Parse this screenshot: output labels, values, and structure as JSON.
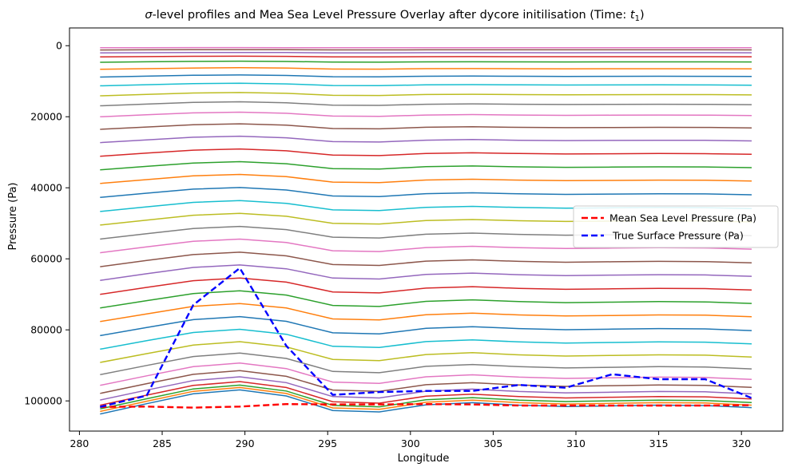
{
  "chart_data": {
    "type": "line",
    "title": "σ-level profiles and Mea Sea Level Pressure Overlay after dycore initilisation (Time: t₁)",
    "title_parts": {
      "sigma": "σ",
      "main": "-level profiles and Mea Sea Level Pressure Overlay after dycore initilisation (Time: ",
      "t": "t",
      "sub": "1",
      "close": ")"
    },
    "xlabel": "Longitude",
    "ylabel": "Pressure (Pa)",
    "xlim": [
      279.4,
      322.5
    ],
    "ylim": [
      108500,
      -5000
    ],
    "y_inverted": true,
    "xticks": [
      280,
      285,
      290,
      295,
      300,
      305,
      310,
      315,
      320
    ],
    "yticks": [
      0,
      20000,
      40000,
      60000,
      80000,
      100000
    ],
    "grid": false,
    "legend_position": "center-right",
    "x": [
      281.25,
      284.06,
      286.88,
      289.69,
      292.5,
      295.31,
      298.12,
      300.94,
      303.75,
      306.56,
      309.38,
      312.19,
      315.0,
      317.81,
      320.62
    ],
    "surface_pressure_sigma": [
      103700,
      100800,
      98000,
      96900,
      98600,
      102700,
      103100,
      101100,
      100500,
      101200,
      101600,
      101400,
      101200,
      101300,
      101900
    ],
    "sigma_levels": [
      0.0055,
      0.0115,
      0.0195,
      0.0305,
      0.045,
      0.064,
      0.085,
      0.109,
      0.136,
      0.163,
      0.193,
      0.227,
      0.263,
      0.3,
      0.337,
      0.374,
      0.412,
      0.45,
      0.487,
      0.525,
      0.562,
      0.6,
      0.637,
      0.675,
      0.712,
      0.749,
      0.787,
      0.824,
      0.86,
      0.893,
      0.922,
      0.944,
      0.962,
      0.976,
      0.986,
      0.993,
      1.0
    ],
    "series": [
      {
        "name": "Mean Sea Level Pressure (Pa)",
        "color": "#ff0000",
        "style": "dashed",
        "values": [
          101700,
          101600,
          101900,
          101600,
          100900,
          101000,
          101000,
          100900,
          101000,
          101300,
          101300,
          101300,
          101300,
          101300,
          101200
        ]
      },
      {
        "name": " True Surface Pressure (Pa)",
        "color": "#0000ff",
        "style": "dashed",
        "values": [
          101700,
          98500,
          73000,
          62600,
          84500,
          98300,
          97500,
          97200,
          97200,
          95500,
          96300,
          92500,
          93900,
          93900,
          99200
        ]
      }
    ],
    "profile_colors": [
      "#1f77b4",
      "#ff7f0e",
      "#2ca02c",
      "#d62728",
      "#9467bd",
      "#8c564b",
      "#e377c2",
      "#7f7f7f",
      "#bcbd22",
      "#17becf"
    ]
  }
}
